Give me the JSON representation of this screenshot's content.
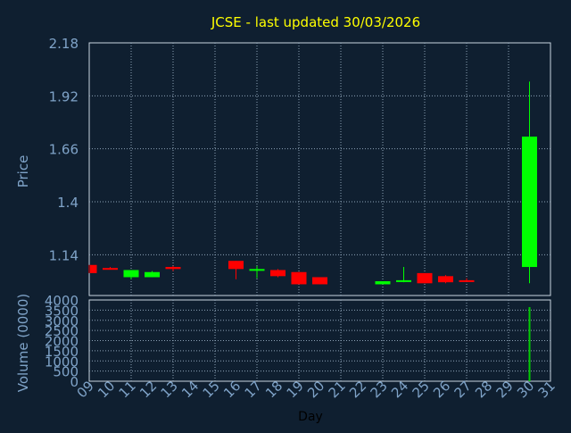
{
  "chart_data": [
    {
      "type": "candlestick",
      "title": "JCSE - last updated 30/03/2026",
      "ylabel": "Price",
      "xlabel": "Day",
      "ylim": [
        0.94,
        2.18
      ],
      "yticks": [
        2.18,
        1.92,
        1.66,
        1.4,
        1.14
      ],
      "ytick_labels": [
        "2.18",
        "1.92",
        "1.66",
        "1.4",
        "1.14"
      ],
      "xlim": [
        9,
        31
      ],
      "xtick_labels": [
        "09",
        "10",
        "11",
        "12",
        "13",
        "14",
        "15",
        "16",
        "17",
        "18",
        "19",
        "20",
        "21",
        "22",
        "23",
        "24",
        "25",
        "26",
        "27",
        "28",
        "29",
        "30",
        "31"
      ],
      "grid": true,
      "up_color": "#00ff00",
      "down_color": "#ff0000",
      "candles": [
        {
          "day": 9,
          "open": 1.09,
          "close": 1.05,
          "high": 1.09,
          "low": 1.05
        },
        {
          "day": 10,
          "open": 1.075,
          "close": 1.07,
          "high": 1.08,
          "low": 1.07
        },
        {
          "day": 11,
          "open": 1.03,
          "close": 1.065,
          "high": 1.065,
          "low": 1.02
        },
        {
          "day": 12,
          "open": 1.03,
          "close": 1.055,
          "high": 1.06,
          "low": 1.03
        },
        {
          "day": 13,
          "open": 1.08,
          "close": 1.07,
          "high": 1.085,
          "low": 1.06
        },
        {
          "day": 16,
          "open": 1.11,
          "close": 1.07,
          "high": 1.11,
          "low": 1.02
        },
        {
          "day": 17,
          "open": 1.065,
          "close": 1.07,
          "high": 1.085,
          "low": 1.025
        },
        {
          "day": 18,
          "open": 1.065,
          "close": 1.035,
          "high": 1.07,
          "low": 1.03
        },
        {
          "day": 19,
          "open": 1.055,
          "close": 0.995,
          "high": 1.055,
          "low": 0.995
        },
        {
          "day": 20,
          "open": 1.03,
          "close": 0.995,
          "high": 1.03,
          "low": 0.995
        },
        {
          "day": 23,
          "open": 0.995,
          "close": 1.01,
          "high": 1.01,
          "low": 0.995
        },
        {
          "day": 24,
          "open": 1.01,
          "close": 1.015,
          "high": 1.08,
          "low": 1.005
        },
        {
          "day": 25,
          "open": 1.05,
          "close": 1.0,
          "high": 1.05,
          "low": 1.0
        },
        {
          "day": 26,
          "open": 1.035,
          "close": 1.005,
          "high": 1.04,
          "low": 1.0
        },
        {
          "day": 27,
          "open": 1.015,
          "close": 1.01,
          "high": 1.025,
          "low": 1.01
        },
        {
          "day": 30,
          "open": 1.08,
          "close": 1.72,
          "high": 1.99,
          "low": 1.0
        }
      ]
    },
    {
      "type": "bar",
      "ylabel": "Volume (0000)",
      "ylim": [
        0,
        4000
      ],
      "yticks": [
        0,
        500,
        1000,
        1500,
        2000,
        2500,
        3000,
        3500,
        4000
      ],
      "ytick_labels": [
        "0",
        "500",
        "1000",
        "1500",
        "2000",
        "2500",
        "3000",
        "3500",
        "4000"
      ],
      "xlim": [
        9,
        31
      ],
      "grid": true,
      "bar_color": "#00cc00",
      "x": [
        30
      ],
      "values": [
        3650
      ]
    }
  ],
  "colors": {
    "background": "#0f1f30",
    "title": "#ffff00",
    "axis_text": "#7fa3c8",
    "xlabel_text": "#000000",
    "grid": "#8fa4b8",
    "axis_line": "#c8d4e0"
  }
}
